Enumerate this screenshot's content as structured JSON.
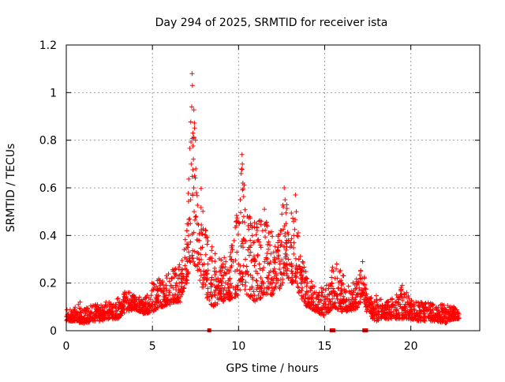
{
  "chart_data": {
    "type": "scatter",
    "title": "Day 294 of 2025, SRMTID for receiver ista",
    "xlabel": "GPS time / hours",
    "ylabel": "SRMTID / TECUs",
    "xlim": [
      0,
      24
    ],
    "ylim": [
      0,
      1.2
    ],
    "x_ticks": [
      0,
      5,
      10,
      15,
      20
    ],
    "x_tick_labels": [
      "0",
      "5",
      "10",
      "15",
      "20"
    ],
    "y_ticks": [
      0,
      0.2,
      0.4,
      0.6,
      0.8,
      1.0,
      1.2
    ],
    "y_tick_labels": [
      "0",
      "0.2",
      "0.4",
      "0.6",
      "0.8",
      "1",
      "1.2"
    ],
    "grid": true,
    "marker": "+",
    "color": "#ff0000",
    "series": [
      {
        "name": "SRMTID",
        "envelope": [
          [
            0.0,
            0.04,
            0.09
          ],
          [
            0.5,
            0.04,
            0.1
          ],
          [
            1.0,
            0.03,
            0.09
          ],
          [
            1.5,
            0.04,
            0.11
          ],
          [
            2.0,
            0.04,
            0.11
          ],
          [
            2.5,
            0.05,
            0.12
          ],
          [
            3.0,
            0.05,
            0.14
          ],
          [
            3.5,
            0.08,
            0.17
          ],
          [
            4.0,
            0.09,
            0.15
          ],
          [
            4.5,
            0.07,
            0.14
          ],
          [
            5.0,
            0.08,
            0.21
          ],
          [
            5.5,
            0.1,
            0.22
          ],
          [
            6.0,
            0.11,
            0.25
          ],
          [
            6.5,
            0.12,
            0.27
          ],
          [
            7.0,
            0.2,
            0.42
          ],
          [
            7.3,
            0.3,
            1.08
          ],
          [
            7.6,
            0.25,
            0.8
          ],
          [
            8.0,
            0.15,
            0.45
          ],
          [
            8.5,
            0.1,
            0.35
          ],
          [
            9.0,
            0.12,
            0.3
          ],
          [
            9.5,
            0.13,
            0.33
          ],
          [
            10.0,
            0.15,
            0.55
          ],
          [
            10.2,
            0.2,
            0.74
          ],
          [
            10.5,
            0.15,
            0.5
          ],
          [
            11.0,
            0.12,
            0.45
          ],
          [
            11.5,
            0.15,
            0.51
          ],
          [
            12.0,
            0.15,
            0.4
          ],
          [
            12.5,
            0.18,
            0.5
          ],
          [
            12.7,
            0.25,
            0.6
          ],
          [
            13.0,
            0.2,
            0.48
          ],
          [
            13.3,
            0.2,
            0.57
          ],
          [
            13.7,
            0.12,
            0.32
          ],
          [
            14.0,
            0.1,
            0.22
          ],
          [
            14.5,
            0.08,
            0.2
          ],
          [
            15.0,
            0.06,
            0.18
          ],
          [
            15.5,
            0.1,
            0.28
          ],
          [
            16.0,
            0.08,
            0.25
          ],
          [
            16.5,
            0.08,
            0.18
          ],
          [
            17.0,
            0.1,
            0.25
          ],
          [
            17.2,
            0.15,
            0.29
          ],
          [
            17.5,
            0.06,
            0.14
          ],
          [
            18.0,
            0.04,
            0.15
          ],
          [
            18.5,
            0.05,
            0.12
          ],
          [
            19.0,
            0.05,
            0.14
          ],
          [
            19.5,
            0.05,
            0.19
          ],
          [
            20.0,
            0.05,
            0.14
          ],
          [
            20.5,
            0.04,
            0.12
          ],
          [
            21.0,
            0.04,
            0.12
          ],
          [
            21.5,
            0.04,
            0.11
          ],
          [
            22.0,
            0.03,
            0.11
          ],
          [
            22.5,
            0.05,
            0.1
          ],
          [
            22.8,
            0.05,
            0.09
          ]
        ],
        "points": [
          [
            0.05,
            0.06
          ],
          [
            0.12,
            0.07
          ],
          [
            0.2,
            0.05
          ],
          [
            0.3,
            0.08
          ],
          [
            0.4,
            0.06
          ],
          [
            0.5,
            0.09
          ],
          [
            0.6,
            0.05
          ],
          [
            0.7,
            0.11
          ],
          [
            0.8,
            0.12
          ],
          [
            0.9,
            0.06
          ],
          [
            1.0,
            0.05
          ],
          [
            1.1,
            0.07
          ],
          [
            1.2,
            0.04
          ],
          [
            1.3,
            0.08
          ],
          [
            1.4,
            0.06
          ],
          [
            1.5,
            0.1
          ],
          [
            1.6,
            0.07
          ],
          [
            1.7,
            0.11
          ],
          [
            1.8,
            0.08
          ],
          [
            1.9,
            0.09
          ],
          [
            2.0,
            0.06
          ],
          [
            2.1,
            0.1
          ],
          [
            2.2,
            0.08
          ],
          [
            2.3,
            0.12
          ],
          [
            2.4,
            0.07
          ],
          [
            2.5,
            0.09
          ],
          [
            2.6,
            0.11
          ],
          [
            2.7,
            0.08
          ],
          [
            2.8,
            0.1
          ],
          [
            2.9,
            0.07
          ],
          [
            3.0,
            0.09
          ],
          [
            3.1,
            0.12
          ],
          [
            3.2,
            0.1
          ],
          [
            3.3,
            0.13
          ],
          [
            3.4,
            0.14
          ],
          [
            3.5,
            0.12
          ],
          [
            3.6,
            0.16
          ],
          [
            3.7,
            0.11
          ],
          [
            3.8,
            0.13
          ],
          [
            3.9,
            0.12
          ],
          [
            4.0,
            0.14
          ],
          [
            4.1,
            0.1
          ],
          [
            4.2,
            0.13
          ],
          [
            4.3,
            0.09
          ],
          [
            4.4,
            0.12
          ],
          [
            4.5,
            0.1
          ],
          [
            4.6,
            0.14
          ],
          [
            4.7,
            0.09
          ],
          [
            4.8,
            0.11
          ],
          [
            4.9,
            0.13
          ],
          [
            5.0,
            0.1
          ],
          [
            5.1,
            0.18
          ],
          [
            5.2,
            0.14
          ],
          [
            5.3,
            0.21
          ],
          [
            5.4,
            0.12
          ],
          [
            5.5,
            0.17
          ],
          [
            5.6,
            0.1
          ],
          [
            5.7,
            0.15
          ],
          [
            5.8,
            0.19
          ],
          [
            5.9,
            0.13
          ],
          [
            6.0,
            0.16
          ],
          [
            6.1,
            0.22
          ],
          [
            6.2,
            0.18
          ],
          [
            6.3,
            0.24
          ],
          [
            6.4,
            0.2
          ],
          [
            6.5,
            0.14
          ],
          [
            6.6,
            0.12
          ],
          [
            6.7,
            0.16
          ],
          [
            6.8,
            0.22
          ],
          [
            6.9,
            0.26
          ],
          [
            7.0,
            0.42
          ],
          [
            7.05,
            0.35
          ],
          [
            7.1,
            0.4
          ],
          [
            7.15,
            0.31
          ],
          [
            7.2,
            0.45
          ],
          [
            7.22,
            0.55
          ],
          [
            7.25,
            0.7
          ],
          [
            7.28,
            0.94
          ],
          [
            7.3,
            1.08
          ],
          [
            7.32,
            1.03
          ],
          [
            7.35,
            0.83
          ],
          [
            7.38,
            0.72
          ],
          [
            7.4,
            0.6
          ],
          [
            7.42,
            0.5
          ],
          [
            7.45,
            0.65
          ],
          [
            7.5,
            0.8
          ],
          [
            7.52,
            0.68
          ],
          [
            7.55,
            0.58
          ],
          [
            7.6,
            0.45
          ],
          [
            7.65,
            0.38
          ],
          [
            7.7,
            0.3
          ],
          [
            7.8,
            0.25
          ],
          [
            7.9,
            0.35
          ],
          [
            8.0,
            0.28
          ],
          [
            8.1,
            0.42
          ],
          [
            8.2,
            0.22
          ],
          [
            8.3,
            0.3
          ],
          [
            8.4,
            0.2
          ],
          [
            8.5,
            0.15
          ],
          [
            8.6,
            0.25
          ],
          [
            8.7,
            0.18
          ],
          [
            8.8,
            0.22
          ],
          [
            8.9,
            0.16
          ],
          [
            9.0,
            0.2
          ],
          [
            9.1,
            0.28
          ],
          [
            9.2,
            0.18
          ],
          [
            9.3,
            0.24
          ],
          [
            9.4,
            0.16
          ],
          [
            9.5,
            0.22
          ],
          [
            9.6,
            0.3
          ],
          [
            9.7,
            0.18
          ],
          [
            9.8,
            0.25
          ],
          [
            9.9,
            0.33
          ],
          [
            10.0,
            0.28
          ],
          [
            10.05,
            0.45
          ],
          [
            10.1,
            0.55
          ],
          [
            10.15,
            0.66
          ],
          [
            10.2,
            0.74
          ],
          [
            10.22,
            0.7
          ],
          [
            10.25,
            0.62
          ],
          [
            10.3,
            0.48
          ],
          [
            10.35,
            0.38
          ],
          [
            10.4,
            0.3
          ],
          [
            10.5,
            0.25
          ],
          [
            10.6,
            0.35
          ],
          [
            10.7,
            0.45
          ],
          [
            10.8,
            0.4
          ],
          [
            10.9,
            0.3
          ],
          [
            11.0,
            0.25
          ],
          [
            11.1,
            0.38
          ],
          [
            11.2,
            0.28
          ],
          [
            11.3,
            0.35
          ],
          [
            11.4,
            0.42
          ],
          [
            11.5,
            0.51
          ],
          [
            11.55,
            0.45
          ],
          [
            11.6,
            0.3
          ],
          [
            11.7,
            0.22
          ],
          [
            11.8,
            0.28
          ],
          [
            11.9,
            0.2
          ],
          [
            12.0,
            0.25
          ],
          [
            12.1,
            0.3
          ],
          [
            12.2,
            0.22
          ],
          [
            12.3,
            0.35
          ],
          [
            12.4,
            0.28
          ],
          [
            12.5,
            0.42
          ],
          [
            12.6,
            0.52
          ],
          [
            12.65,
            0.6
          ],
          [
            12.7,
            0.55
          ],
          [
            12.75,
            0.45
          ],
          [
            12.8,
            0.38
          ],
          [
            12.9,
            0.3
          ],
          [
            13.0,
            0.35
          ],
          [
            13.1,
            0.25
          ],
          [
            13.2,
            0.4
          ],
          [
            13.3,
            0.57
          ],
          [
            13.35,
            0.5
          ],
          [
            13.4,
            0.4
          ],
          [
            13.5,
            0.3
          ],
          [
            13.6,
            0.22
          ],
          [
            13.7,
            0.18
          ],
          [
            13.8,
            0.25
          ],
          [
            13.9,
            0.15
          ],
          [
            14.0,
            0.2
          ],
          [
            14.1,
            0.12
          ],
          [
            14.2,
            0.18
          ],
          [
            14.3,
            0.14
          ],
          [
            14.4,
            0.16
          ],
          [
            14.5,
            0.1
          ],
          [
            14.6,
            0.15
          ],
          [
            14.7,
            0.12
          ],
          [
            14.8,
            0.18
          ],
          [
            14.9,
            0.1
          ],
          [
            15.0,
            0.13
          ],
          [
            15.1,
            0.08
          ],
          [
            15.2,
            0.15
          ],
          [
            15.3,
            0.09
          ],
          [
            15.4,
            0.2
          ],
          [
            15.5,
            0.25
          ],
          [
            15.6,
            0.22
          ],
          [
            15.7,
            0.28
          ],
          [
            15.8,
            0.18
          ],
          [
            15.9,
            0.15
          ],
          [
            16.0,
            0.2
          ],
          [
            16.1,
            0.12
          ],
          [
            16.2,
            0.16
          ],
          [
            16.3,
            0.1
          ],
          [
            16.4,
            0.13
          ],
          [
            16.5,
            0.09
          ],
          [
            16.6,
            0.15
          ],
          [
            16.7,
            0.11
          ],
          [
            16.8,
            0.14
          ],
          [
            16.9,
            0.1
          ],
          [
            17.0,
            0.18
          ],
          [
            17.1,
            0.25
          ],
          [
            17.2,
            0.29
          ],
          [
            17.3,
            0.22
          ],
          [
            17.4,
            0.12
          ],
          [
            17.5,
            0.1
          ],
          [
            17.6,
            0.08
          ],
          [
            17.7,
            0.12
          ],
          [
            17.8,
            0.06
          ],
          [
            17.9,
            0.09
          ],
          [
            18.0,
            0.11
          ],
          [
            18.1,
            0.07
          ],
          [
            18.2,
            0.13
          ],
          [
            18.3,
            0.08
          ],
          [
            18.4,
            0.1
          ],
          [
            18.5,
            0.06
          ],
          [
            18.6,
            0.09
          ],
          [
            18.7,
            0.12
          ],
          [
            18.8,
            0.07
          ],
          [
            18.9,
            0.1
          ],
          [
            19.0,
            0.08
          ],
          [
            19.1,
            0.12
          ],
          [
            19.2,
            0.09
          ],
          [
            19.3,
            0.11
          ],
          [
            19.4,
            0.15
          ],
          [
            19.5,
            0.19
          ],
          [
            19.6,
            0.14
          ],
          [
            19.7,
            0.1
          ],
          [
            19.8,
            0.12
          ],
          [
            19.9,
            0.08
          ],
          [
            20.0,
            0.11
          ],
          [
            20.1,
            0.07
          ],
          [
            20.2,
            0.09
          ],
          [
            20.3,
            0.12
          ],
          [
            20.4,
            0.06
          ],
          [
            20.5,
            0.1
          ],
          [
            20.6,
            0.08
          ],
          [
            20.7,
            0.11
          ],
          [
            20.8,
            0.07
          ],
          [
            20.9,
            0.09
          ],
          [
            21.0,
            0.06
          ],
          [
            21.1,
            0.1
          ],
          [
            21.2,
            0.08
          ],
          [
            21.3,
            0.11
          ],
          [
            21.4,
            0.06
          ],
          [
            21.5,
            0.09
          ],
          [
            21.6,
            0.07
          ],
          [
            21.7,
            0.05
          ],
          [
            21.8,
            0.08
          ],
          [
            21.9,
            0.06
          ],
          [
            22.0,
            0.09
          ],
          [
            22.1,
            0.05
          ],
          [
            22.2,
            0.08
          ],
          [
            22.3,
            0.1
          ],
          [
            22.4,
            0.07
          ],
          [
            22.5,
            0.09
          ],
          [
            22.6,
            0.06
          ],
          [
            22.7,
            0.08
          ],
          [
            22.8,
            0.07
          ]
        ]
      }
    ],
    "baseline_markers_x": [
      8.3,
      15.4,
      15.5,
      17.3,
      17.4
    ]
  }
}
